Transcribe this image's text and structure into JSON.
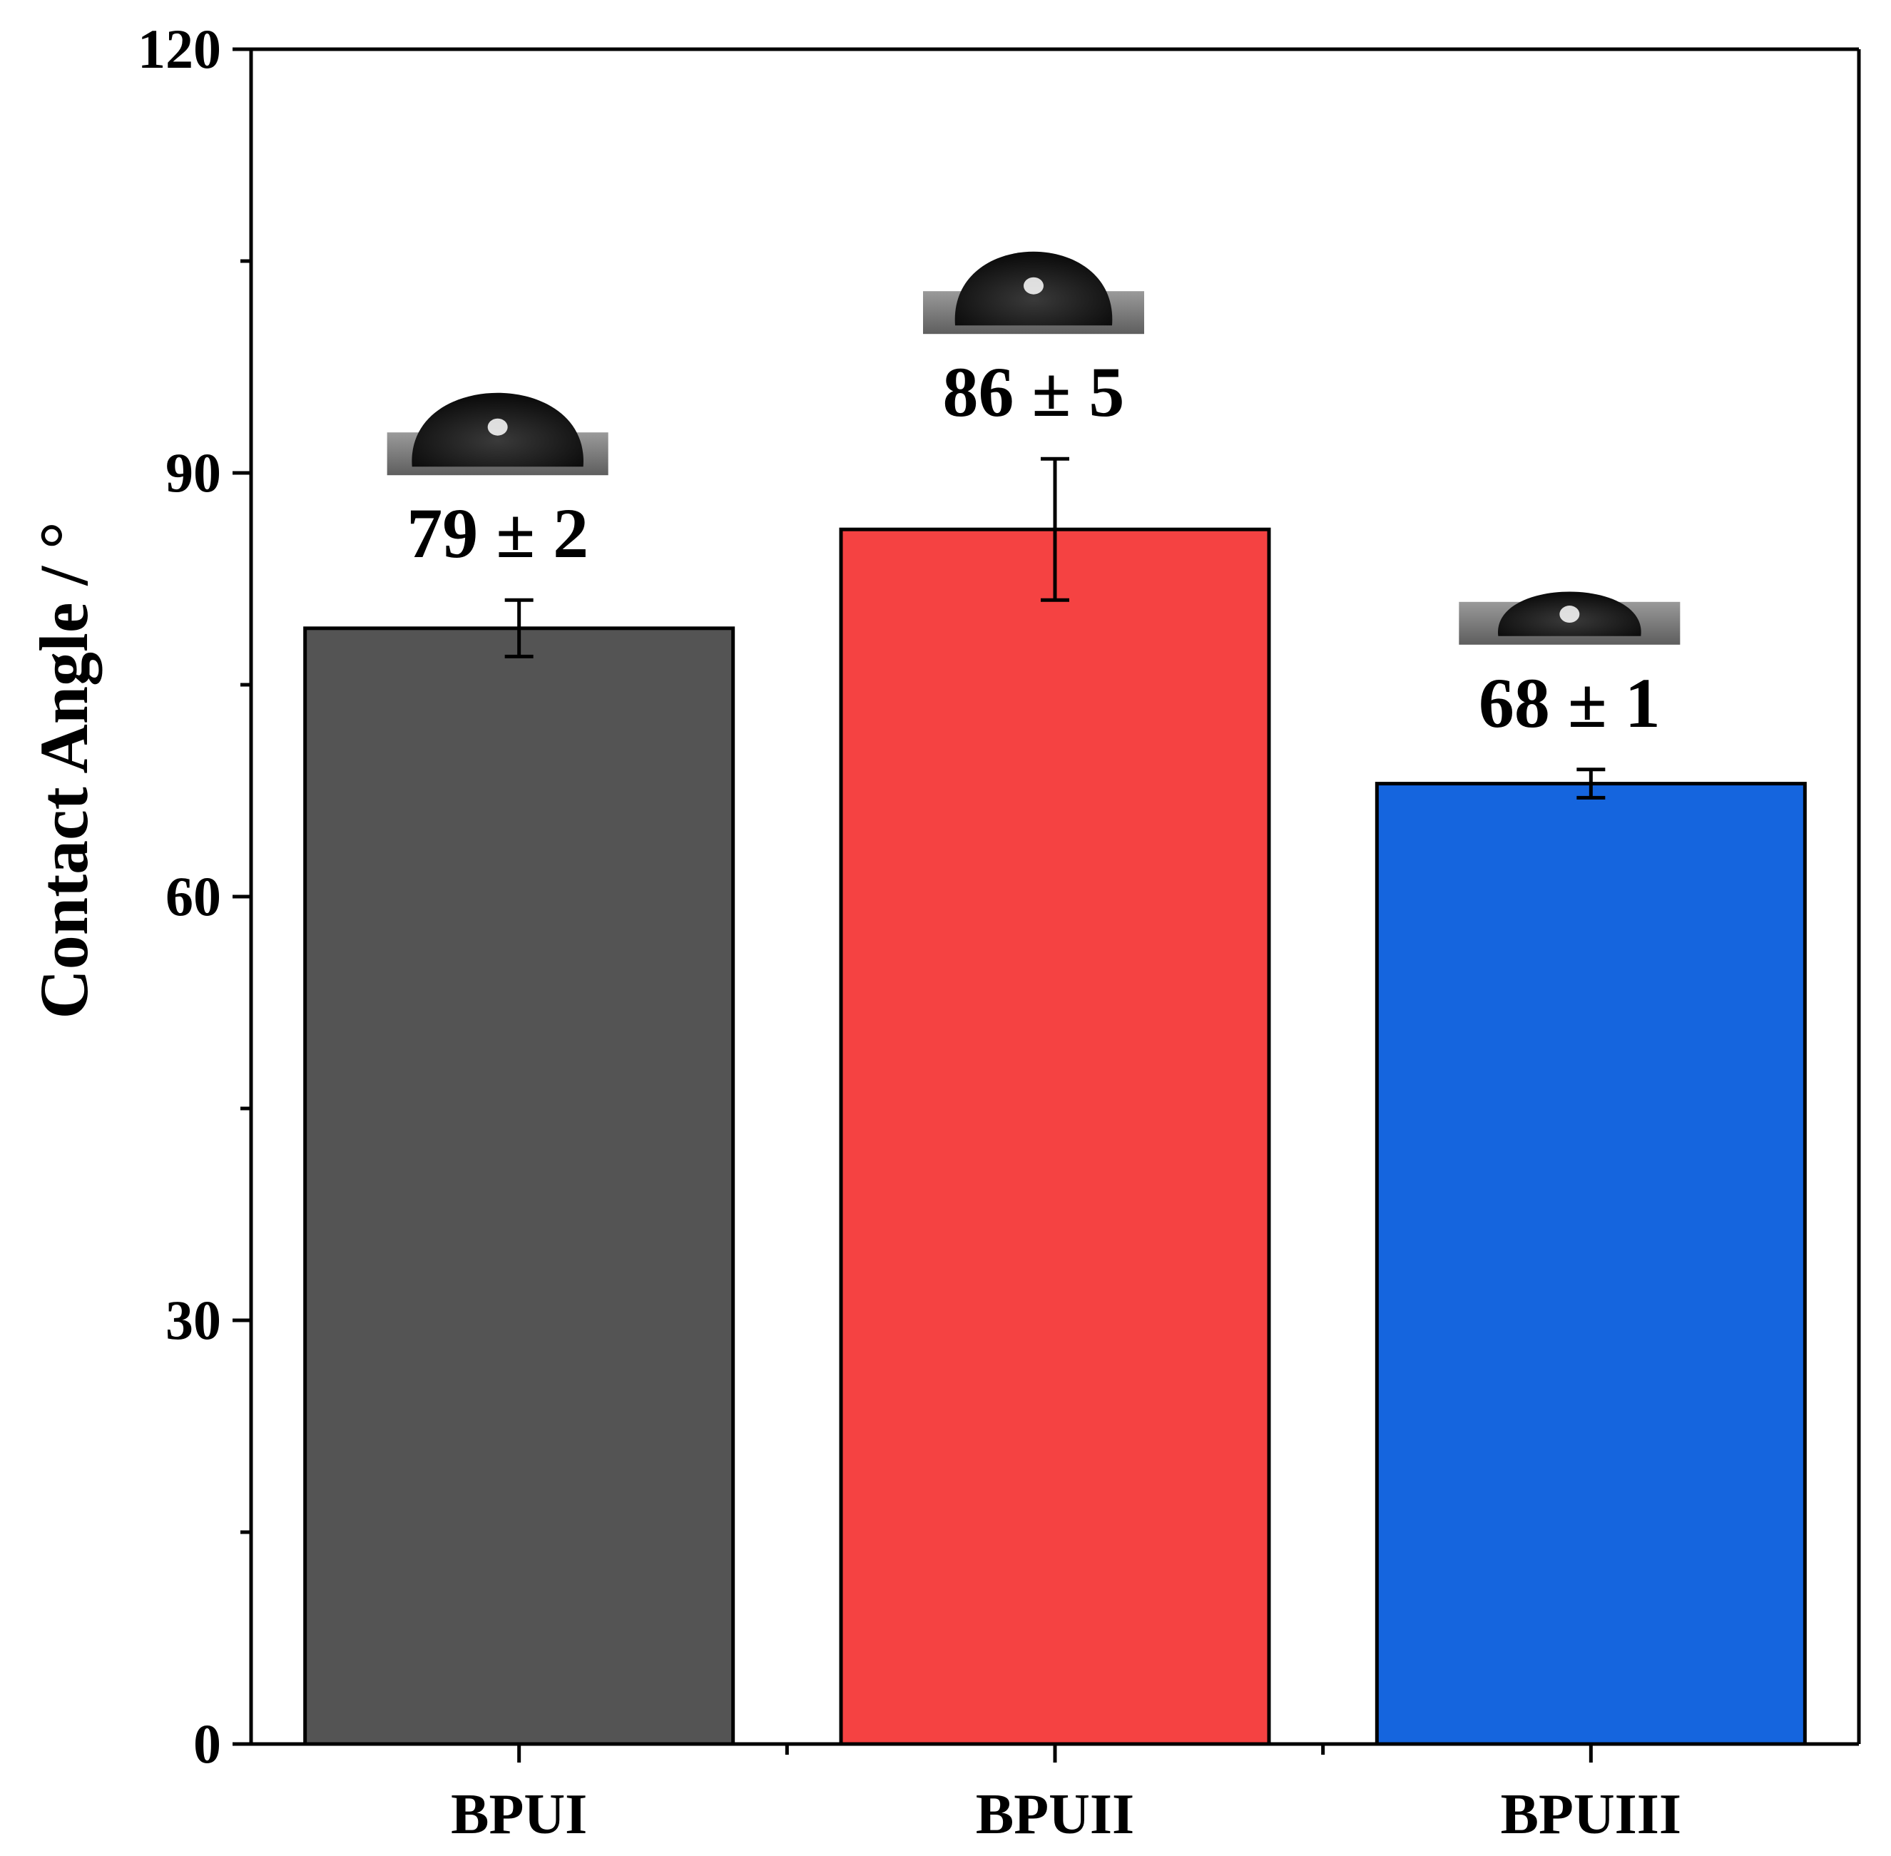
{
  "chart_data": {
    "type": "bar",
    "title": "",
    "xlabel": "",
    "ylabel": "Contact Angle / °",
    "ylim": [
      0,
      120
    ],
    "yticks": [
      0,
      30,
      60,
      90,
      120
    ],
    "minor_yticks": [
      15,
      45,
      75,
      105
    ],
    "grid": false,
    "legend": "none",
    "categories": [
      "BPUI",
      "BPUII",
      "BPUIII"
    ],
    "values": [
      79,
      86,
      68
    ],
    "errors": [
      2,
      5,
      1
    ],
    "labels": [
      "79 ± 2",
      "86 ± 5",
      "68 ± 1"
    ],
    "colors": [
      "#545454",
      "#f54242",
      "#1565de"
    ],
    "insets": [
      "water droplet photo",
      "water droplet photo",
      "water droplet photo"
    ]
  }
}
